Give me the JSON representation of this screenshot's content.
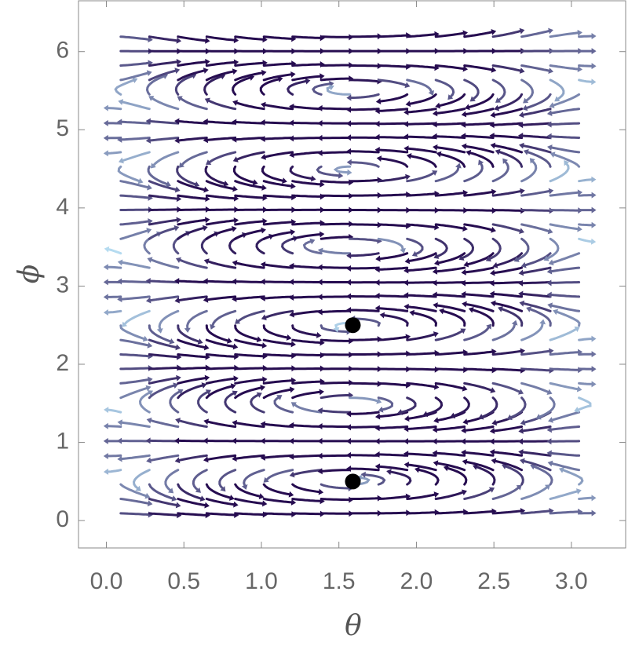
{
  "chart_data": {
    "type": "stream",
    "x_label": "θ",
    "y_label": "ϕ",
    "xlim": [
      -0.18,
      3.35
    ],
    "ylim": [
      -0.35,
      6.65
    ],
    "xticks": [
      {
        "value": 0,
        "label": "0.0"
      },
      0.5,
      {
        "value": 1,
        "label": "1.0"
      },
      1.5,
      {
        "value": 2,
        "label": "2.0"
      },
      2.5,
      {
        "value": 3,
        "label": "3.0"
      }
    ],
    "yticks": [
      0,
      1,
      2,
      3,
      4,
      5,
      6
    ],
    "points": {
      "x": [
        1.59,
        1.59
      ],
      "y": [
        2.5,
        0.5
      ],
      "color": "#000000"
    }
  }
}
